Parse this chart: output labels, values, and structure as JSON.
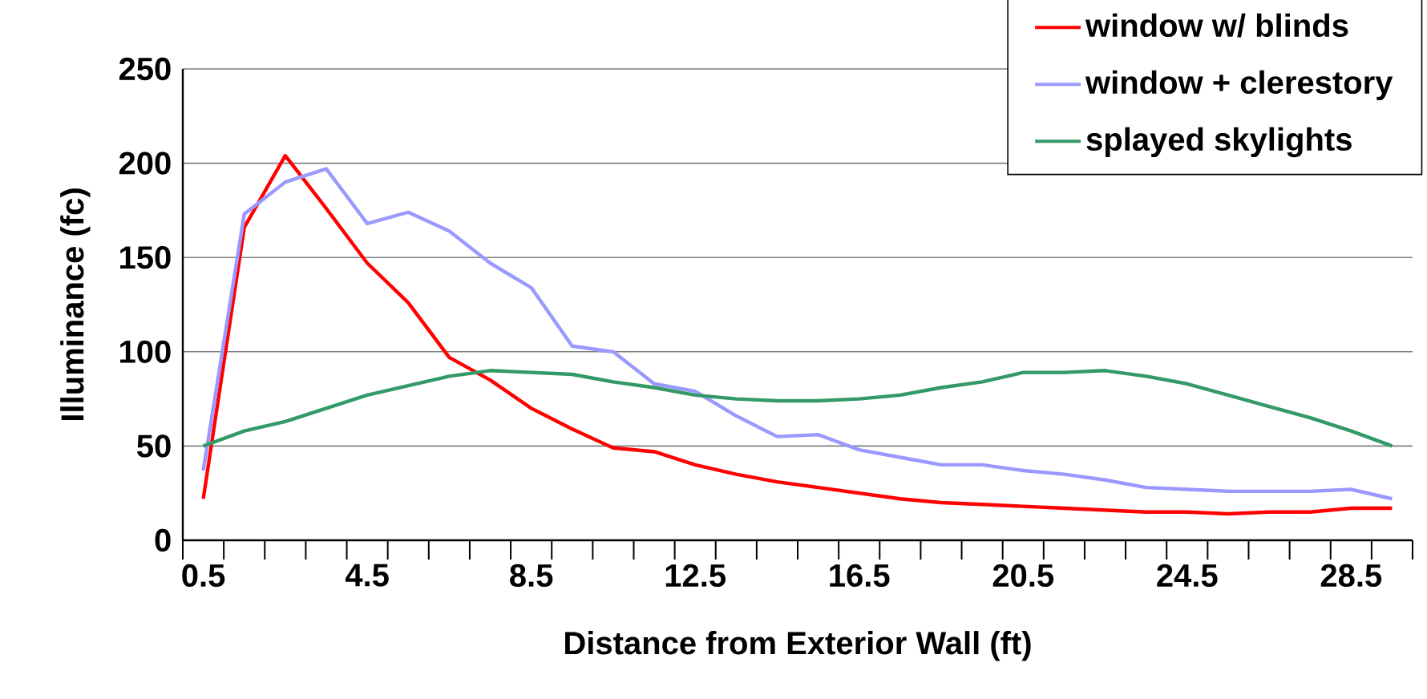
{
  "chart_data": {
    "type": "line",
    "xlabel": "Distance from Exterior Wall (ft)",
    "ylabel": "Illuminance (fc)",
    "x": [
      0.5,
      1.5,
      2.5,
      3.5,
      4.5,
      5.5,
      6.5,
      7.5,
      8.5,
      9.5,
      10.5,
      11.5,
      12.5,
      13.5,
      14.5,
      15.5,
      16.5,
      17.5,
      18.5,
      19.5,
      20.5,
      21.5,
      22.5,
      23.5,
      24.5,
      25.5,
      26.5,
      27.5,
      28.5,
      29.5
    ],
    "series": [
      {
        "name": "window w/ blinds",
        "color": "#ff0000",
        "values": [
          22,
          166,
          204,
          176,
          147,
          126,
          97,
          85,
          70,
          59,
          49,
          47,
          40,
          35,
          31,
          28,
          25,
          22,
          20,
          19,
          18,
          17,
          16,
          15,
          15,
          14,
          15,
          15,
          17,
          17
        ]
      },
      {
        "name": "window + clerestory",
        "color": "#9999ff",
        "values": [
          37,
          173,
          190,
          197,
          168,
          174,
          164,
          147,
          134,
          103,
          100,
          83,
          79,
          66,
          55,
          56,
          48,
          44,
          40,
          40,
          37,
          35,
          32,
          28,
          27,
          26,
          26,
          26,
          27,
          22
        ]
      },
      {
        "name": "splayed skylights",
        "color": "#339966",
        "values": [
          50,
          58,
          63,
          70,
          77,
          82,
          87,
          90,
          89,
          88,
          84,
          81,
          77,
          75,
          74,
          74,
          75,
          77,
          81,
          84,
          89,
          89,
          90,
          87,
          83,
          77,
          71,
          65,
          58,
          50
        ]
      }
    ],
    "xlim": [
      0,
      30
    ],
    "xticks": [
      0.5,
      4.5,
      8.5,
      12.5,
      16.5,
      20.5,
      24.5,
      28.5
    ],
    "ylim": [
      0,
      250
    ],
    "yticks": [
      0,
      50,
      100,
      150,
      200,
      250
    ],
    "grid": "y",
    "legend": "top right",
    "marker": "none",
    "line_style": "solid"
  }
}
